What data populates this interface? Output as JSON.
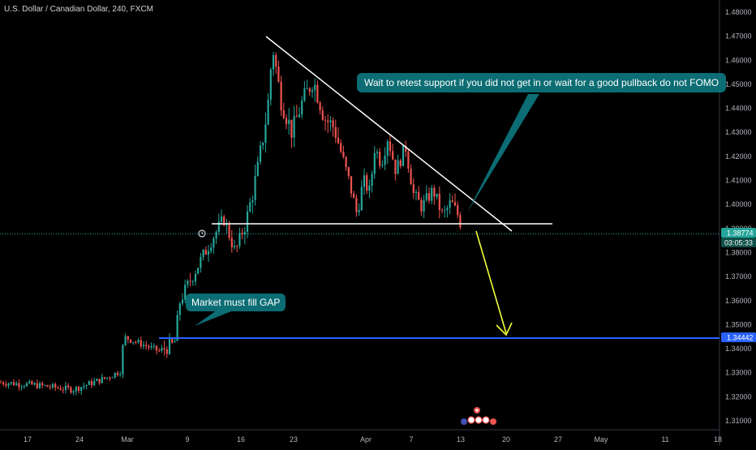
{
  "chart_title": "U.S. Dollar / Canadian Dollar, 240, FXCM",
  "colors": {
    "up": "#26a69a",
    "down": "#ef5350",
    "annotation": "#0c6d74",
    "support_line": "#ffffff",
    "trend_line": "#ffffff",
    "blue_line": "#2962ff",
    "arrow": "#f0ff3a",
    "price_tag": "#26a69a",
    "blue_tag": "#2962ff"
  },
  "price_tag": {
    "price": "1.38774",
    "countdown": "03:05:33"
  },
  "level_tag": {
    "price": "1.34442"
  },
  "annotations": {
    "main": "Wait to retest support if you did not get in or wait for a good pullback do not FOMO",
    "gap": "Market must fill GAP"
  },
  "chart_data": {
    "type": "candlestick",
    "title": "U.S. Dollar / Canadian Dollar, 240, FXCM",
    "y_axis": {
      "ticks": [
        "1.48000",
        "1.47000",
        "1.46000",
        "1.45000",
        "1.44000",
        "1.43000",
        "1.42000",
        "1.41000",
        "1.40000",
        "1.39000",
        "1.38000",
        "1.37000",
        "1.36000",
        "1.35000",
        "1.34000",
        "1.33000",
        "1.32000",
        "1.31000"
      ],
      "range": [
        1.305,
        1.482
      ]
    },
    "x_axis": {
      "ticks": [
        "17",
        "24",
        "Mar",
        "9",
        "16",
        "23",
        "Apr",
        "7",
        "13",
        "20",
        "27",
        "May",
        "11",
        "18"
      ]
    },
    "price_path": [
      {
        "x": "Feb 16",
        "y": 1.326
      },
      {
        "x": "Feb 20",
        "y": 1.325
      },
      {
        "x": "Feb 24",
        "y": 1.323
      },
      {
        "x": "Feb 27",
        "y": 1.328
      },
      {
        "x": "Mar 2",
        "y": 1.331
      },
      {
        "x": "Mar 3",
        "y": 1.345
      },
      {
        "x": "Mar 5",
        "y": 1.339
      },
      {
        "x": "Mar 6",
        "y": 1.342
      },
      {
        "x": "Mar 9",
        "y": 1.36
      },
      {
        "x": "Mar 10",
        "y": 1.372
      },
      {
        "x": "Mar 12",
        "y": 1.386
      },
      {
        "x": "Mar 13",
        "y": 1.394
      },
      {
        "x": "Mar 14",
        "y": 1.38
      },
      {
        "x": "Mar 16",
        "y": 1.395
      },
      {
        "x": "Mar 17",
        "y": 1.415
      },
      {
        "x": "Mar 18",
        "y": 1.44
      },
      {
        "x": "Mar 19",
        "y": 1.466
      },
      {
        "x": "Mar 20",
        "y": 1.444
      },
      {
        "x": "Mar 21",
        "y": 1.43
      },
      {
        "x": "Mar 23",
        "y": 1.442
      },
      {
        "x": "Mar 24",
        "y": 1.452
      },
      {
        "x": "Mar 25",
        "y": 1.436
      },
      {
        "x": "Mar 26",
        "y": 1.432
      },
      {
        "x": "Mar 27",
        "y": 1.41
      },
      {
        "x": "Mar 28",
        "y": 1.396
      },
      {
        "x": "Mar 30",
        "y": 1.41
      },
      {
        "x": "Mar 31",
        "y": 1.405
      },
      {
        "x": "Apr 1",
        "y": 1.424
      },
      {
        "x": "Apr 2",
        "y": 1.417
      },
      {
        "x": "Apr 3",
        "y": 1.428
      },
      {
        "x": "Apr 5",
        "y": 1.414
      },
      {
        "x": "Apr 6",
        "y": 1.424
      },
      {
        "x": "Apr 7",
        "y": 1.404
      },
      {
        "x": "Apr 8",
        "y": 1.399
      },
      {
        "x": "Apr 9",
        "y": 1.406
      },
      {
        "x": "Apr 10",
        "y": 1.395
      },
      {
        "x": "Apr 12",
        "y": 1.401
      },
      {
        "x": "Apr 13",
        "y": 1.396
      },
      {
        "x": "Apr 14",
        "y": 1.39
      },
      {
        "x": "Apr 14",
        "y": 1.3877
      }
    ],
    "lines": [
      {
        "name": "descending trendline",
        "from": {
          "x": "Mar 19",
          "y": 1.468
        },
        "to": {
          "x": "Apr 20",
          "y": 1.388
        }
      },
      {
        "name": "support",
        "from": {
          "x": "Mar 11",
          "y": 1.392
        },
        "to": {
          "x": "Apr 24",
          "y": 1.392
        }
      },
      {
        "name": "gap level",
        "from": {
          "x": "Mar 7",
          "y": 1.34442
        },
        "to": {
          "x": "May 18",
          "y": 1.34442
        }
      }
    ],
    "current_price": 1.38774,
    "gap_level": 1.34442
  }
}
